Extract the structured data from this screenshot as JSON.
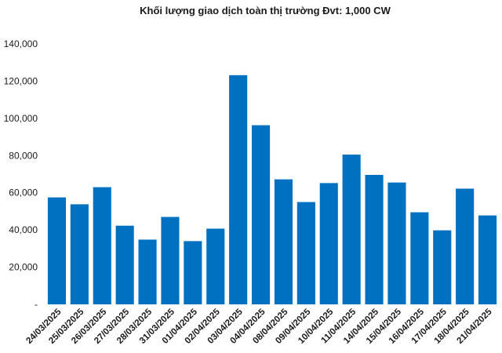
{
  "chart_data": {
    "type": "bar",
    "title": "Khối lượng giao dịch toàn thị trường Đvt: 1,000 CW",
    "xlabel": "",
    "ylabel": "",
    "categories": [
      "24/03/2025",
      "25/03/2025",
      "26/03/2025",
      "27/03/2025",
      "28/03/2025",
      "31/03/2025",
      "01/04/2025",
      "02/04/2025",
      "03/04/2025",
      "04/04/2025",
      "08/04/2025",
      "09/04/2025",
      "10/04/2025",
      "11/04/2025",
      "14/04/2025",
      "15/04/2025",
      "16/04/2025",
      "17/04/2025",
      "18/04/2025",
      "21/04/2025"
    ],
    "values": [
      57500,
      53800,
      63000,
      42300,
      34800,
      47000,
      34000,
      40700,
      123200,
      96300,
      67200,
      55000,
      65200,
      80500,
      69600,
      65500,
      49500,
      39800,
      62200,
      47800
    ],
    "ylim": [
      0,
      140000
    ],
    "yticks": [
      0,
      20000,
      40000,
      60000,
      80000,
      100000,
      120000,
      140000
    ],
    "ytick_labels": [
      "-",
      "20,000",
      "40,000",
      "60,000",
      "80,000",
      "100,000",
      "120,000",
      "140,000"
    ],
    "grid": false,
    "legend": "none",
    "bar_color": "#0070C0"
  }
}
